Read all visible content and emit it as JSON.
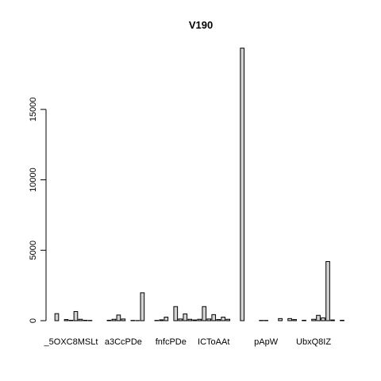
{
  "chart_data": {
    "type": "bar",
    "title": "V190",
    "xlabel": "",
    "ylabel": "",
    "ylim": [
      0,
      19500
    ],
    "yticks": [
      0,
      5000,
      10000,
      15000
    ],
    "x_tick_labels": [
      "_5OXC8MSLt",
      "a3CcPDe",
      "fnfcPDe",
      "ICToAAt",
      "pApW",
      "UbxQ8IZ"
    ],
    "x_tick_label_bar_index": [
      3,
      14,
      24,
      33,
      44,
      54
    ],
    "values": [
      500,
      0,
      80,
      30,
      650,
      100,
      30,
      20,
      0,
      0,
      0,
      30,
      100,
      400,
      120,
      0,
      20,
      10,
      1980,
      0,
      0,
      20,
      60,
      250,
      0,
      1000,
      120,
      480,
      100,
      50,
      100,
      1000,
      120,
      430,
      80,
      250,
      100,
      0,
      0,
      19350,
      0,
      0,
      0,
      20,
      20,
      0,
      0,
      150,
      0,
      150,
      80,
      0,
      30,
      0,
      100,
      380,
      200,
      4200,
      50,
      0,
      30
    ]
  }
}
